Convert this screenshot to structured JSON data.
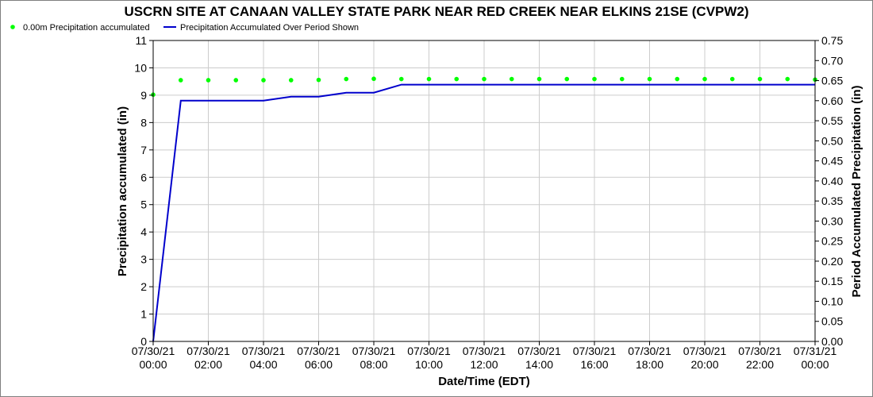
{
  "chart_data": {
    "type": "line",
    "title": "USCRN SITE AT CANAAN VALLEY STATE PARK NEAR RED CREEK NEAR ELKINS 21SE (CVPW2)",
    "xlabel": "Date/Time (EDT)",
    "ylabel_left": "Precipitation accumulated (in)",
    "ylabel_right": "Period Accumulated Precipitation (in)",
    "x_ticks": [
      {
        "date": "07/30/21",
        "time": "00:00"
      },
      {
        "date": "07/30/21",
        "time": "02:00"
      },
      {
        "date": "07/30/21",
        "time": "04:00"
      },
      {
        "date": "07/30/21",
        "time": "06:00"
      },
      {
        "date": "07/30/21",
        "time": "08:00"
      },
      {
        "date": "07/30/21",
        "time": "10:00"
      },
      {
        "date": "07/30/21",
        "time": "12:00"
      },
      {
        "date": "07/30/21",
        "time": "14:00"
      },
      {
        "date": "07/30/21",
        "time": "16:00"
      },
      {
        "date": "07/30/21",
        "time": "18:00"
      },
      {
        "date": "07/30/21",
        "time": "20:00"
      },
      {
        "date": "07/30/21",
        "time": "22:00"
      },
      {
        "date": "07/31/21",
        "time": "00:00"
      }
    ],
    "xlim_hours": [
      0,
      24
    ],
    "ylim_left": [
      0,
      11
    ],
    "y_ticks_left": [
      "0",
      "1",
      "2",
      "3",
      "4",
      "5",
      "6",
      "7",
      "8",
      "9",
      "10",
      "11"
    ],
    "ylim_right": [
      0,
      0.75
    ],
    "y_ticks_right": [
      "0.00",
      "0.05",
      "0.10",
      "0.15",
      "0.20",
      "0.25",
      "0.30",
      "0.35",
      "0.40",
      "0.45",
      "0.50",
      "0.55",
      "0.60",
      "0.65",
      "0.70",
      "0.75"
    ],
    "grid": true,
    "legend_position": "top-left",
    "series": [
      {
        "name": "0.00m Precipitation accumulated",
        "axis": "left",
        "style": "markers",
        "color": "#00ff00",
        "x": [
          0,
          1,
          2,
          3,
          4,
          5,
          6,
          7,
          8,
          9,
          10,
          11,
          12,
          13,
          14,
          15,
          16,
          17,
          18,
          19,
          20,
          21,
          22,
          23,
          24
        ],
        "y": [
          9.02,
          9.55,
          9.55,
          9.55,
          9.55,
          9.55,
          9.56,
          9.59,
          9.6,
          9.59,
          9.59,
          9.59,
          9.59,
          9.59,
          9.59,
          9.59,
          9.59,
          9.59,
          9.59,
          9.59,
          9.59,
          9.59,
          9.59,
          9.59,
          9.57
        ]
      },
      {
        "name": "Precipitation Accumulated Over Period Shown",
        "axis": "right",
        "style": "line",
        "color": "#0000cc",
        "x": [
          0,
          1,
          2,
          3,
          4,
          5,
          6,
          7,
          8,
          9,
          10,
          11,
          12,
          13,
          14,
          15,
          16,
          17,
          18,
          19,
          20,
          21,
          22,
          23,
          24
        ],
        "y": [
          0.0,
          0.6,
          0.6,
          0.6,
          0.6,
          0.61,
          0.61,
          0.62,
          0.62,
          0.64,
          0.64,
          0.64,
          0.64,
          0.64,
          0.64,
          0.64,
          0.64,
          0.64,
          0.64,
          0.64,
          0.64,
          0.64,
          0.64,
          0.64,
          0.64
        ]
      }
    ]
  }
}
